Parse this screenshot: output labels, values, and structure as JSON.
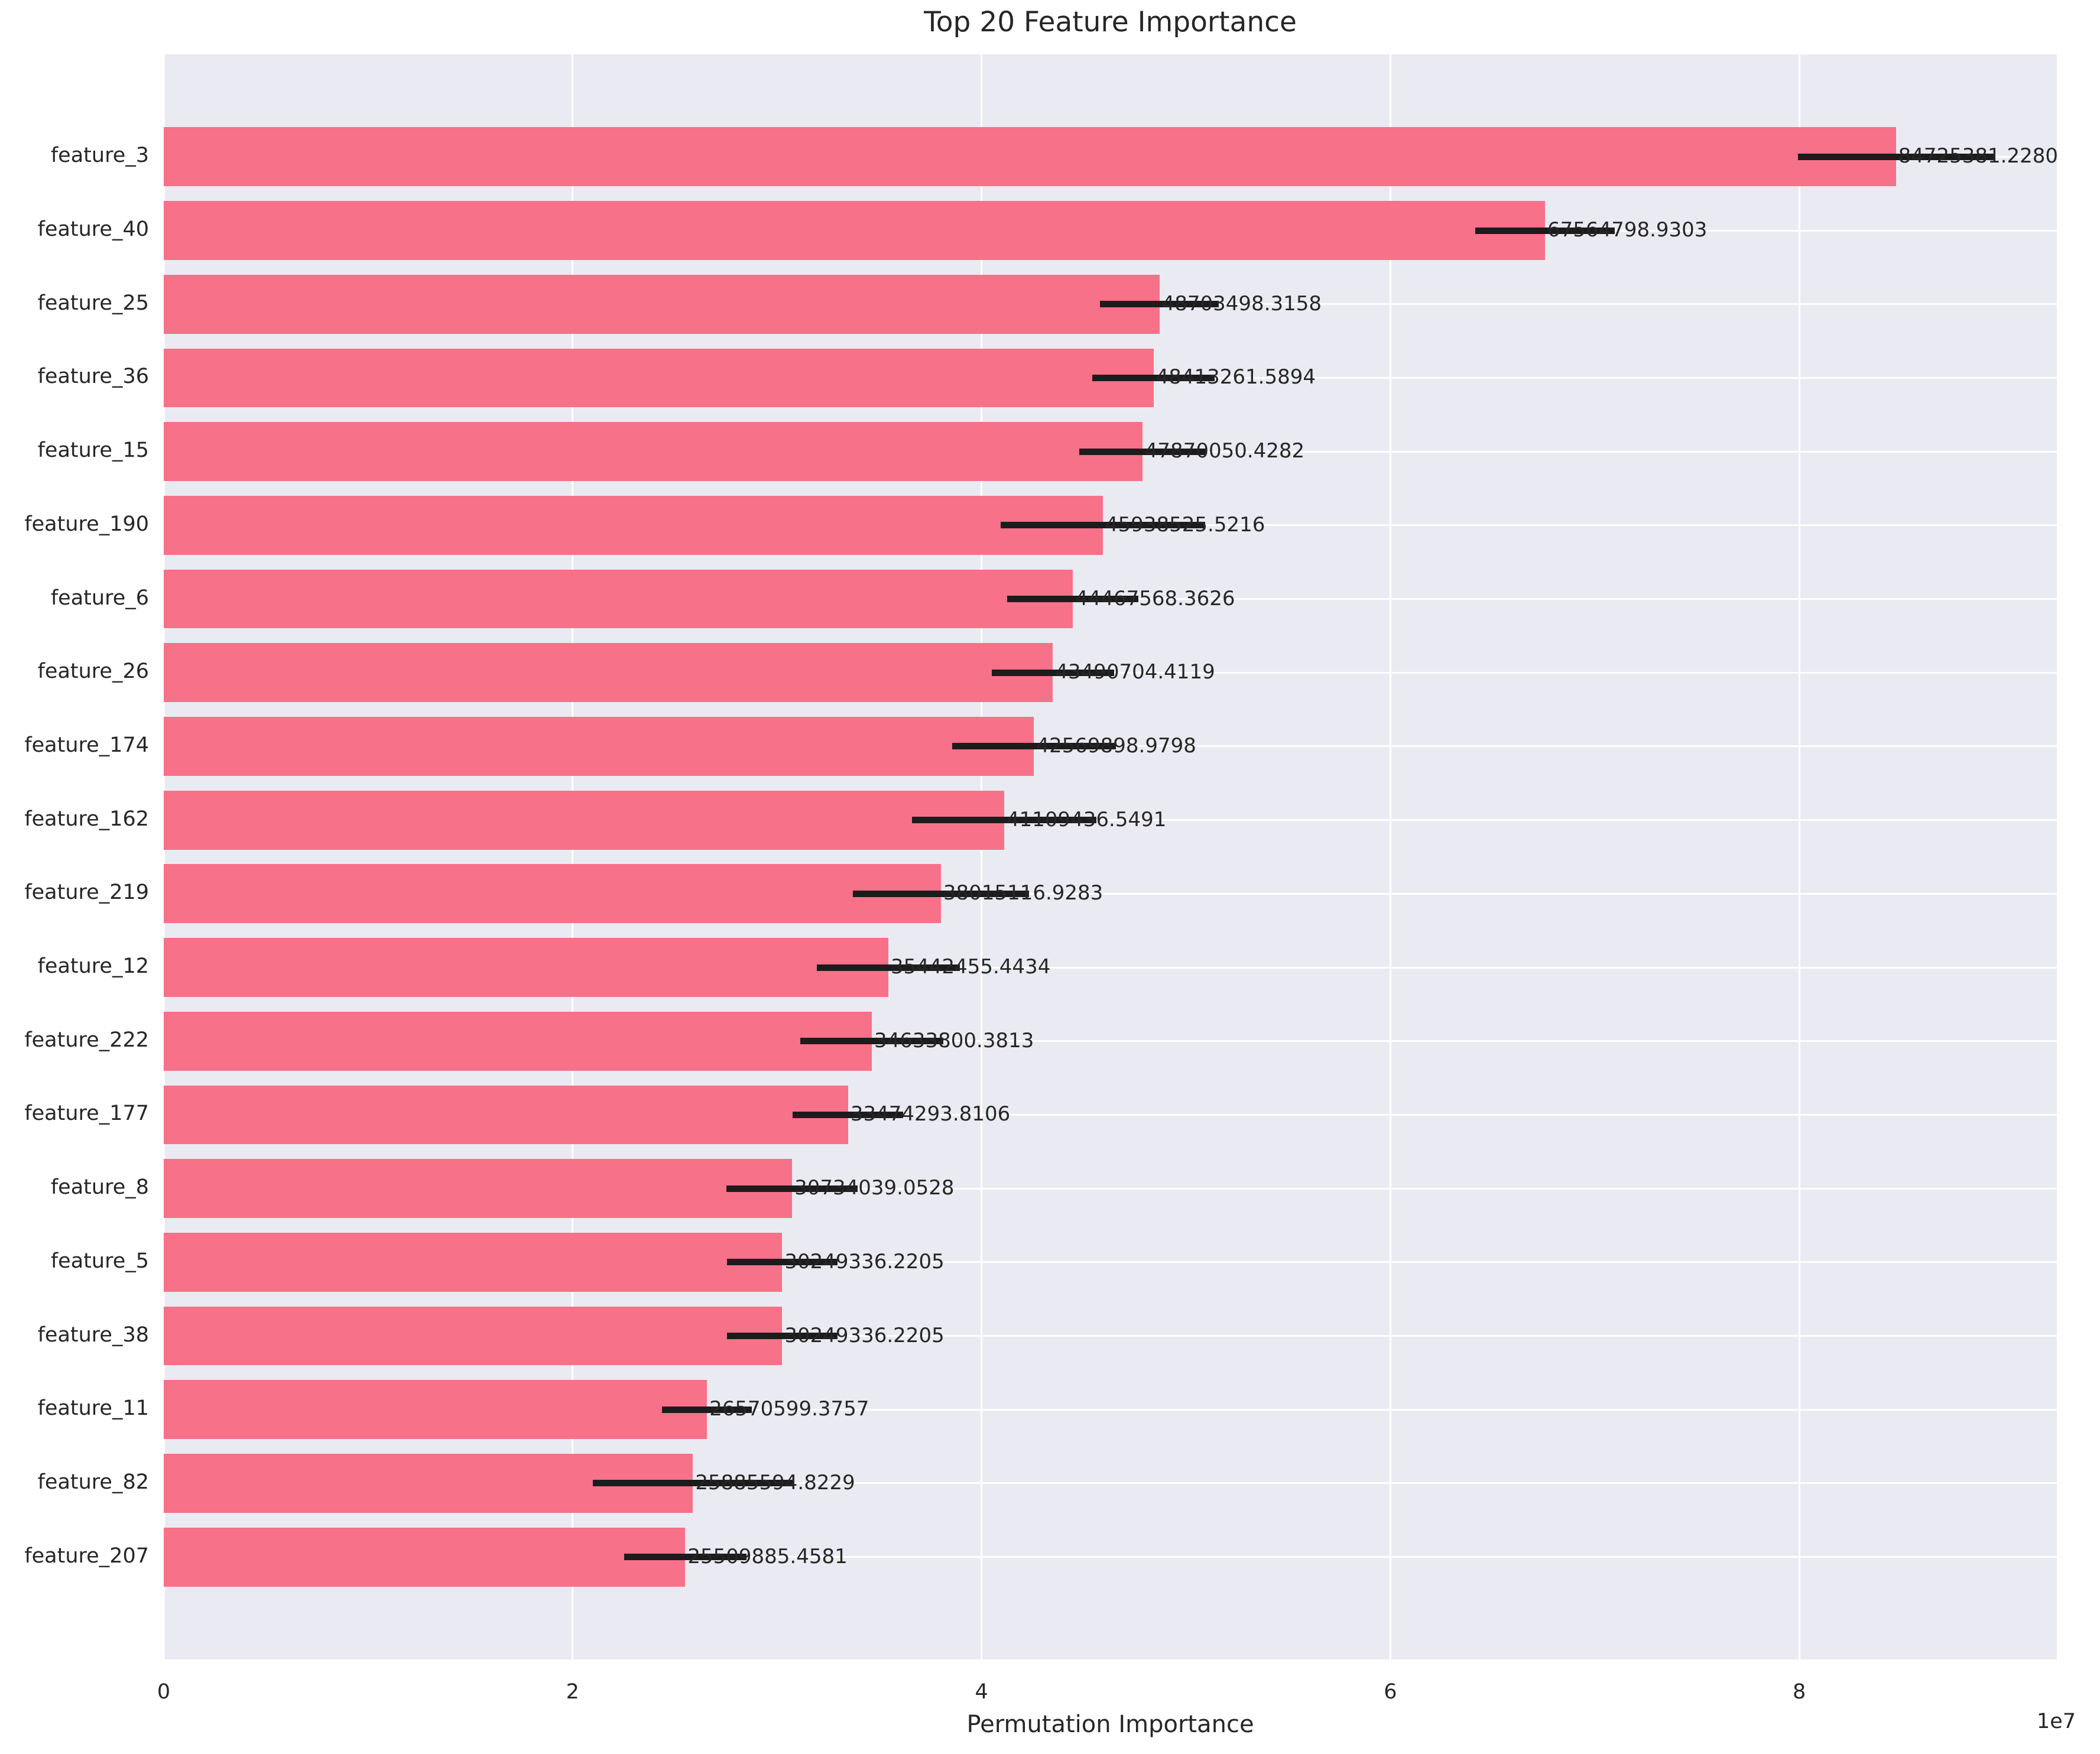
{
  "chart_data": {
    "type": "bar",
    "orientation": "horizontal",
    "title": "Top 20 Feature Importance",
    "xlabel": "Permutation Importance",
    "ylabel": "",
    "offset_text": "1e7",
    "legend": null,
    "grid": true,
    "categories": [
      "feature_3",
      "feature_40",
      "feature_25",
      "feature_36",
      "feature_15",
      "feature_190",
      "feature_6",
      "feature_26",
      "feature_174",
      "feature_162",
      "feature_219",
      "feature_12",
      "feature_222",
      "feature_177",
      "feature_8",
      "feature_5",
      "feature_38",
      "feature_11",
      "feature_82",
      "feature_207"
    ],
    "values": [
      84725381.228,
      67564798.9303,
      48703498.3158,
      48413261.5894,
      47870050.4282,
      45938525.5216,
      44467568.3626,
      43490704.4119,
      42569898.9798,
      41109436.5491,
      38015116.9283,
      35442455.4434,
      34633800.3813,
      33474293.8106,
      30734039.0528,
      30249336.2205,
      30249336.2205,
      26570599.3757,
      25885594.8229,
      25509885.4581
    ],
    "value_labels": [
      "84725381.2280",
      "67564798.9303",
      "48703498.3158",
      "48413261.5894",
      "47870050.4282",
      "45938525.5216",
      "44467568.3626",
      "43490704.4119",
      "42569898.9798",
      "41109436.5491",
      "38015116.9283",
      "35442455.4434",
      "34633800.3813",
      "33474293.8106",
      "30734039.0528",
      "30249336.2205",
      "30249336.2205",
      "26570599.3757",
      "25885594.8229",
      "25509885.4581"
    ],
    "errors_estimated": [
      4800000,
      3400000,
      2900000,
      3000000,
      3100000,
      5000000,
      3200000,
      3000000,
      4000000,
      4500000,
      4300000,
      3500000,
      3500000,
      2700000,
      3200000,
      2700000,
      2700000,
      2200000,
      4900000,
      3000000
    ],
    "xticks": [
      0,
      20000000,
      40000000,
      60000000,
      80000000
    ],
    "xtick_labels": [
      "0",
      "2",
      "4",
      "6",
      "8"
    ],
    "xlim": [
      0,
      92600000
    ],
    "colors": {
      "bar": "#f77189",
      "axes_background": "#eaeaf2",
      "gridline": "#ffffff",
      "text": "#262626",
      "error_bar": "#1c1c1c"
    }
  }
}
